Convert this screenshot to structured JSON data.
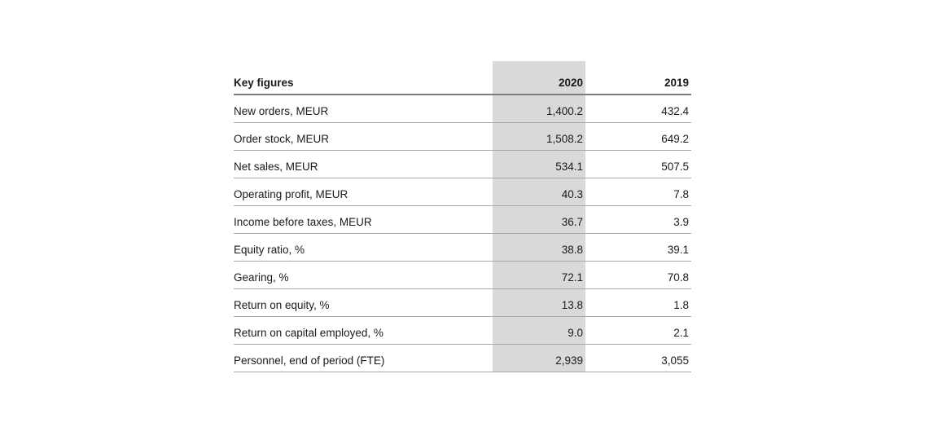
{
  "table": {
    "title_note": "Key figures table",
    "highlight_color": "#d9d9d9",
    "header": {
      "label": "Key figures",
      "col2020": "2020",
      "col2019": "2019"
    },
    "rows": [
      {
        "label": "New orders, MEUR",
        "v2020": "1,400.2",
        "v2019": "432.4"
      },
      {
        "label": "Order stock, MEUR",
        "v2020": "1,508.2",
        "v2019": "649.2"
      },
      {
        "label": "Net sales, MEUR",
        "v2020": "534.1",
        "v2019": "507.5"
      },
      {
        "label": "Operating profit, MEUR",
        "v2020": "40.3",
        "v2019": "7.8"
      },
      {
        "label": "Income before taxes, MEUR",
        "v2020": "36.7",
        "v2019": "3.9"
      },
      {
        "label": "Equity ratio, %",
        "v2020": "38.8",
        "v2019": "39.1"
      },
      {
        "label": "Gearing, %",
        "v2020": "72.1",
        "v2019": "70.8"
      },
      {
        "label": "Return on equity, %",
        "v2020": "13.8",
        "v2019": "1.8"
      },
      {
        "label": "Return on capital employed, %",
        "v2020": "9.0",
        "v2019": "2.1"
      },
      {
        "label": "Personnel, end of period (FTE)",
        "v2020": "2,939",
        "v2019": "3,055"
      }
    ]
  }
}
